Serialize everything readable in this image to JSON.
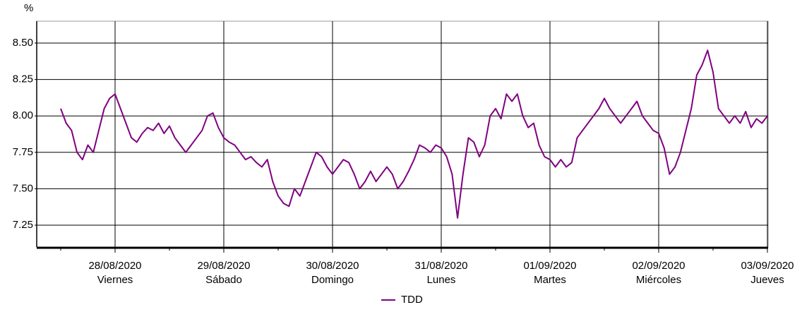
{
  "chart_data": {
    "type": "line",
    "unit_label": "%",
    "xticks": [
      "28/08/2020",
      "29/08/2020",
      "30/08/2020",
      "31/08/2020",
      "01/09/2020",
      "02/09/2020",
      "03/09/2020"
    ],
    "xtick_days": [
      "Viernes",
      "Sábado",
      "Domingo",
      "Lunes",
      "Martes",
      "Miércoles",
      "Jueves"
    ],
    "ylim": [
      7.1,
      8.65
    ],
    "yticks": [
      7.25,
      {
        "value": 7.5,
        "label": "7.50"
      },
      7.75,
      {
        "value": 8.0,
        "label": "8.00"
      },
      8.25,
      {
        "value": 8.5,
        "label": "8.50"
      }
    ],
    "grid": true,
    "series": [
      {
        "name": "TDD",
        "color": "#800080",
        "values": [
          8.05,
          7.95,
          7.9,
          7.75,
          7.7,
          7.8,
          7.75,
          7.9,
          8.05,
          8.12,
          8.15,
          8.05,
          7.95,
          7.85,
          7.82,
          7.88,
          7.92,
          7.9,
          7.95,
          7.88,
          7.93,
          7.85,
          7.8,
          7.75,
          7.8,
          7.85,
          7.9,
          8.0,
          8.02,
          7.92,
          7.85,
          7.82,
          7.8,
          7.75,
          7.7,
          7.72,
          7.68,
          7.65,
          7.7,
          7.55,
          7.45,
          7.4,
          7.38,
          7.5,
          7.45,
          7.55,
          7.65,
          7.75,
          7.72,
          7.65,
          7.6,
          7.65,
          7.7,
          7.68,
          7.6,
          7.5,
          7.55,
          7.62,
          7.55,
          7.6,
          7.65,
          7.6,
          7.5,
          7.55,
          7.62,
          7.7,
          7.8,
          7.78,
          7.75,
          7.8,
          7.78,
          7.72,
          7.6,
          7.3,
          7.6,
          7.85,
          7.82,
          7.72,
          7.8,
          8.0,
          8.05,
          7.98,
          8.15,
          8.1,
          8.15,
          8.0,
          7.92,
          7.95,
          7.8,
          7.72,
          7.7,
          7.65,
          7.7,
          7.65,
          7.68,
          7.85,
          7.9,
          7.95,
          8.0,
          8.05,
          8.12,
          8.05,
          8.0,
          7.95,
          8.0,
          8.05,
          8.1,
          8.0,
          7.95,
          7.9,
          7.88,
          7.78,
          7.6,
          7.65,
          7.75,
          7.9,
          8.05,
          8.28,
          8.35,
          8.45,
          8.3,
          8.05,
          8.0,
          7.95,
          8.0,
          7.95,
          8.03,
          7.92,
          7.98,
          7.95,
          8.0
        ]
      }
    ]
  }
}
